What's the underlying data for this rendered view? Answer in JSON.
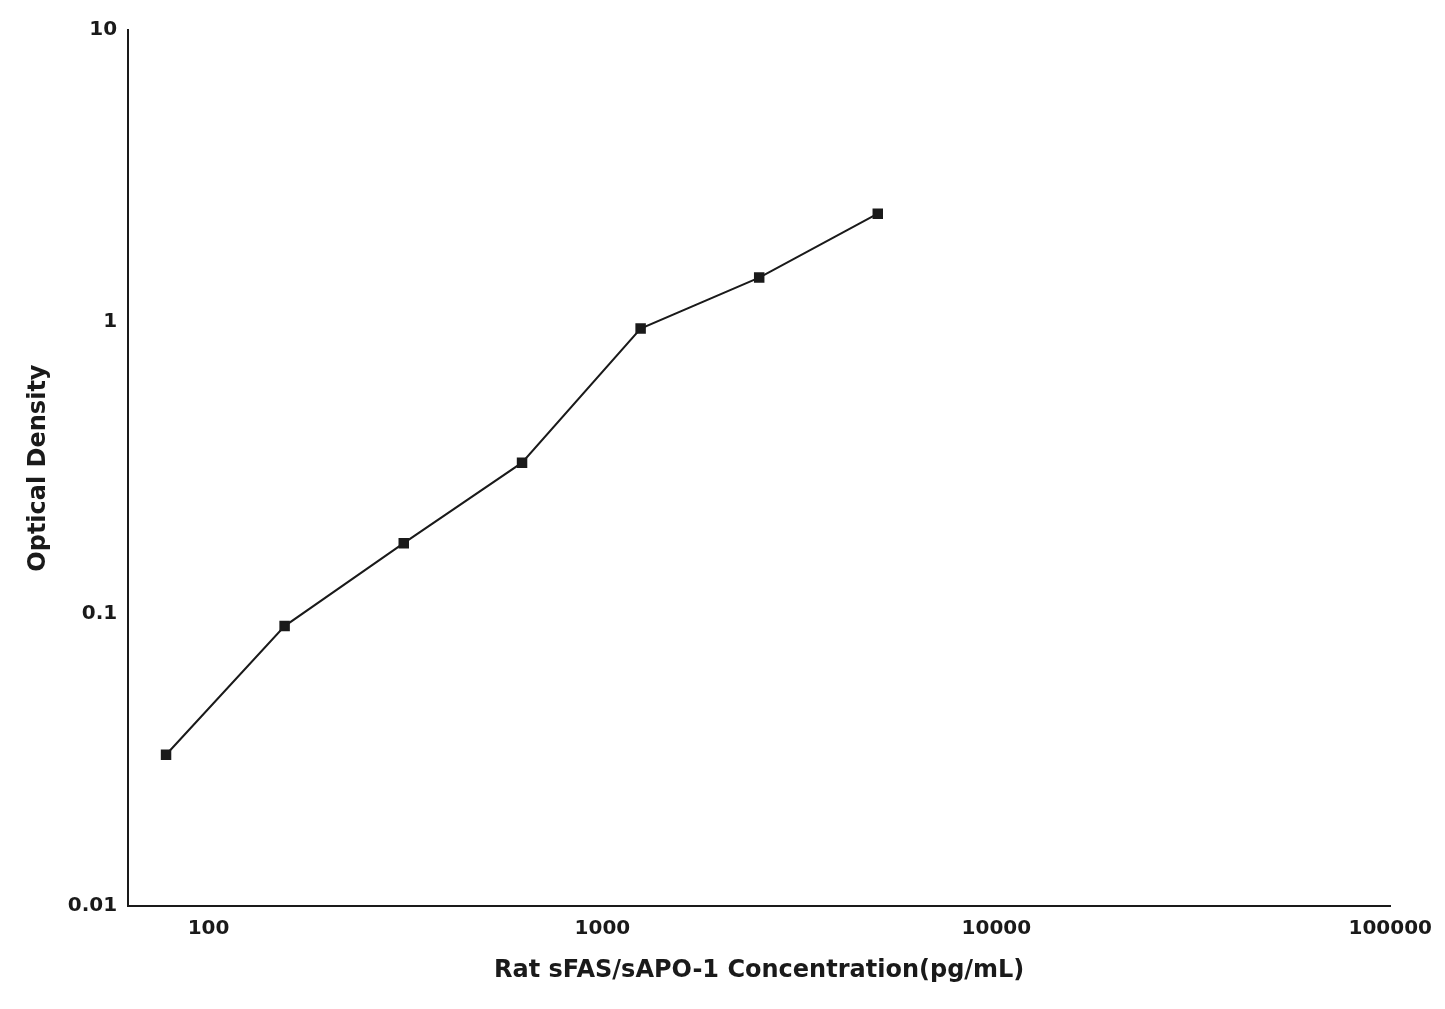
{
  "chart_data": {
    "type": "line",
    "x": [
      78,
      156,
      313,
      625,
      1250,
      2500,
      5000
    ],
    "values": [
      0.033,
      0.091,
      0.175,
      0.33,
      0.95,
      1.42,
      2.35
    ],
    "xlabel": "Rat sFAS/sAPO-1 Concentration(pg/mL)",
    "ylabel": "Optical Density",
    "xlim": [
      62.5,
      100000
    ],
    "ylim": [
      0.01,
      10
    ],
    "xticks": [
      100,
      1000,
      10000,
      100000
    ],
    "yticks": [
      0.01,
      0.1,
      1,
      10
    ],
    "log": true,
    "color": "#1a1a1a",
    "marker": "square",
    "grid": false
  }
}
